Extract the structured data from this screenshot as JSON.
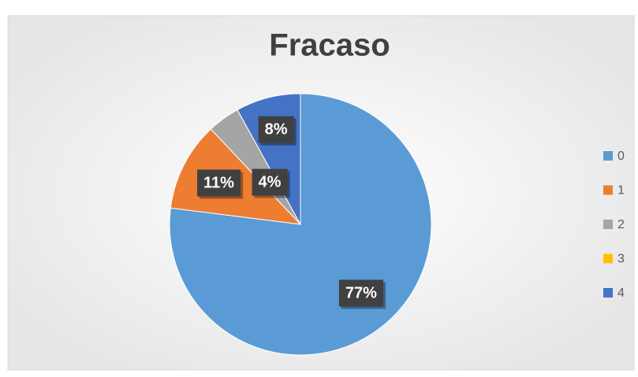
{
  "chart_data": {
    "type": "pie",
    "title": "Fracaso",
    "categories": [
      "0",
      "1",
      "2",
      "3",
      "4"
    ],
    "values": [
      77,
      11,
      4,
      0,
      8
    ],
    "value_labels": [
      "77%",
      "11%",
      "4%",
      null,
      "8%"
    ],
    "colors": [
      "#5b9bd5",
      "#ed7d31",
      "#a5a5a5",
      "#ffc000",
      "#4472c4"
    ],
    "legend": "right"
  }
}
